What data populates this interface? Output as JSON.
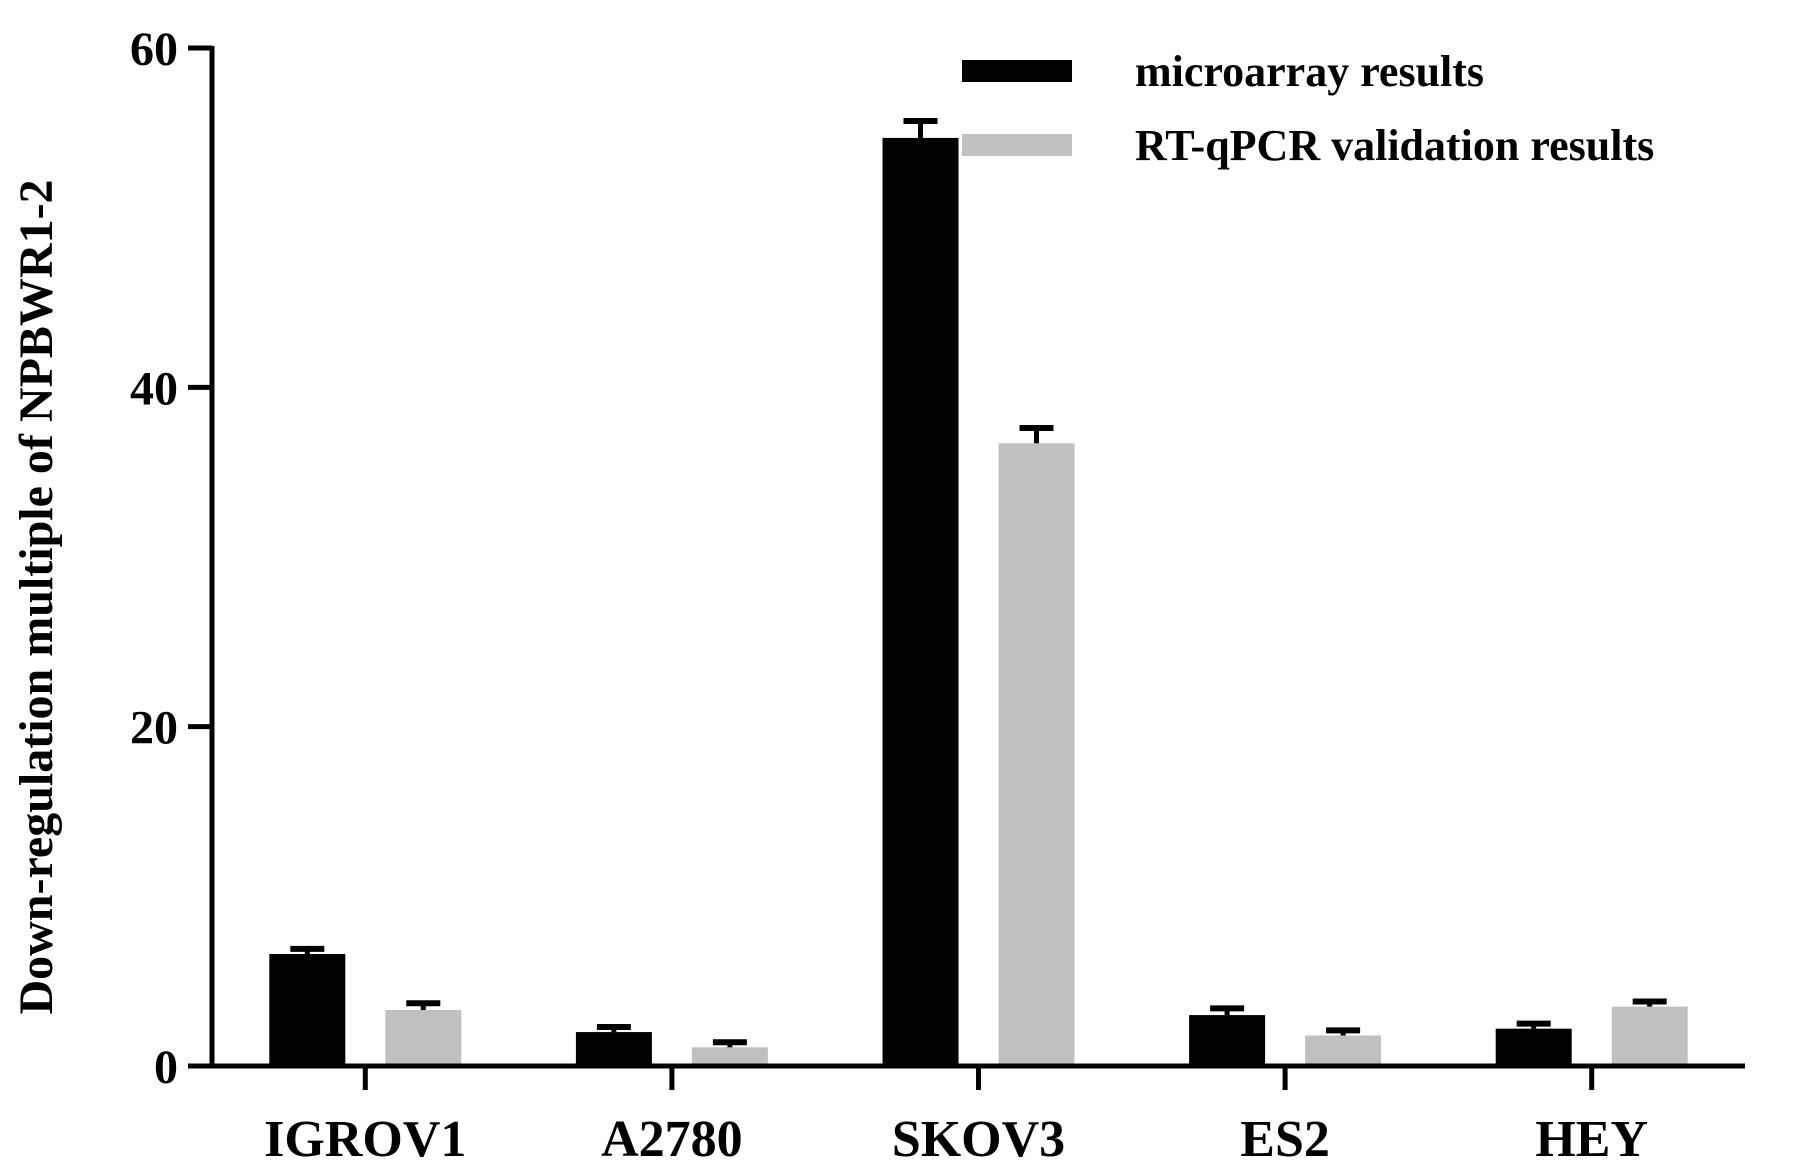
{
  "chart_data": {
    "type": "bar",
    "ylabel": "Down-regulation multiple of NPBWR1-2",
    "xlabel": "",
    "ylim": [
      0,
      60
    ],
    "yticks": [
      0,
      20,
      40,
      60
    ],
    "grid": false,
    "legend_position": "top-right",
    "categories": [
      "IGROV1",
      "A2780",
      "SKOV3",
      "ES2",
      "HEY"
    ],
    "series": [
      {
        "name": "microarray results",
        "color": "#000000",
        "values": [
          6.6,
          2.0,
          54.7,
          3.0,
          2.2
        ],
        "errors": [
          0.3,
          0.3,
          1.0,
          0.4,
          0.3
        ]
      },
      {
        "name": "RT-qPCR validation results",
        "color": "#c0c0c0",
        "values": [
          3.3,
          1.1,
          36.7,
          1.8,
          3.5
        ],
        "errors": [
          0.4,
          0.3,
          0.9,
          0.3,
          0.3
        ]
      }
    ]
  }
}
